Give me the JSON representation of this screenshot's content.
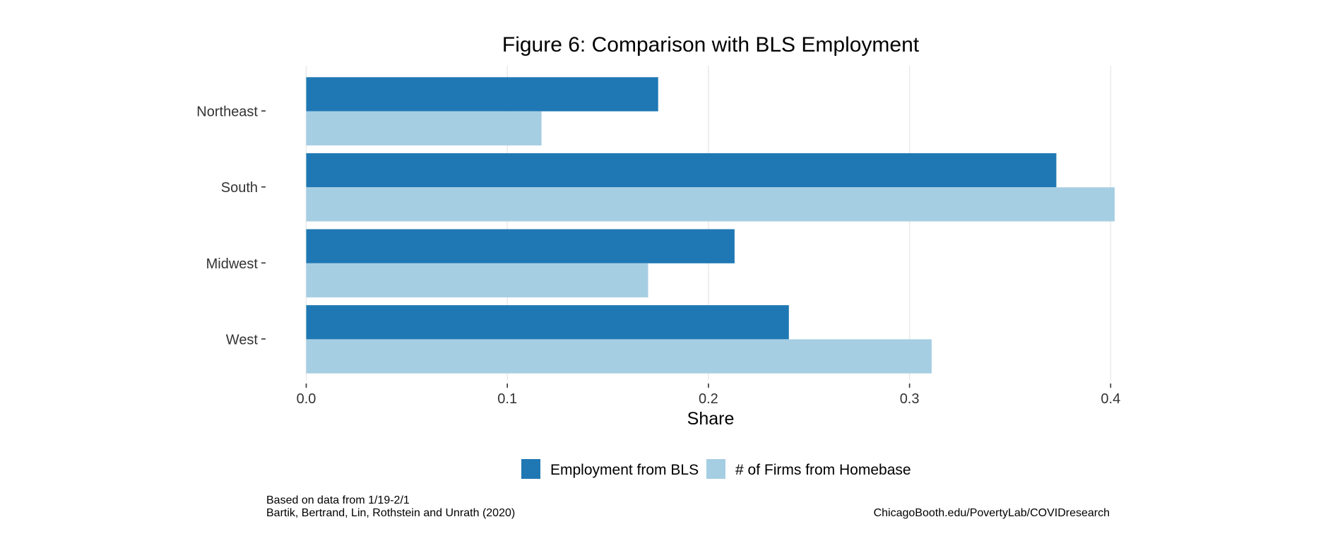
{
  "chart_data": {
    "type": "bar",
    "orientation": "horizontal",
    "title": "Figure 6: Comparison with BLS Employment",
    "xlabel": "Share",
    "ylabel": "",
    "categories": [
      "Northeast",
      "South",
      "Midwest",
      "West"
    ],
    "series": [
      {
        "name": "Employment from BLS",
        "color": "#1F78B4",
        "values": [
          0.175,
          0.373,
          0.213,
          0.24
        ]
      },
      {
        "name": "# of Firms from Homebase",
        "color": "#A6CEE3",
        "values": [
          0.117,
          0.402,
          0.17,
          0.311
        ]
      }
    ],
    "xlim": [
      0.0,
      0.4
    ],
    "xticks": [
      0.0,
      0.1,
      0.2,
      0.3,
      0.4
    ],
    "xtick_labels": [
      "0.0",
      "0.1",
      "0.2",
      "0.3",
      "0.4"
    ],
    "grid": "vertical-major",
    "legend_position": "bottom",
    "captions": {
      "left": [
        "Based on data from 1/19-2/1",
        "Bartik, Bertrand, Lin, Rothstein and Unrath (2020)"
      ],
      "right": "ChicagoBooth.edu/PovertyLab/COVIDresearch"
    }
  },
  "colors": {
    "grid": "#EBEBEB",
    "tick": "#333333"
  }
}
